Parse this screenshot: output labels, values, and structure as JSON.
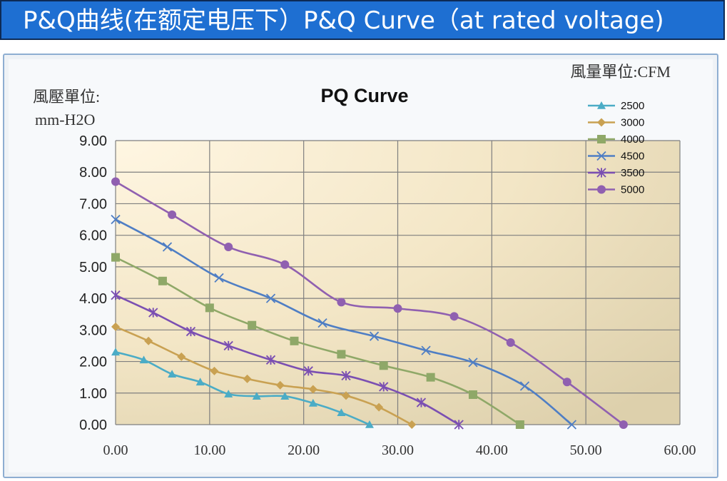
{
  "header": {
    "title": "P&Q曲线(在额定电压下）P&Q Curve（at rated voltage)",
    "bg_color": "#1e6fd2"
  },
  "chart_data": {
    "type": "line",
    "title": "PQ Curve",
    "xunit_label": "風量單位:CFM",
    "yunit_label_line1": "風壓單位:",
    "yunit_label_line2": "mm-H2O",
    "xlim": [
      0,
      60
    ],
    "ylim": [
      0,
      9
    ],
    "x_ticks": [
      "0.00",
      "10.00",
      "20.00",
      "30.00",
      "40.00",
      "50.00",
      "60.00"
    ],
    "y_ticks": [
      "0.00",
      "1.00",
      "2.00",
      "3.00",
      "4.00",
      "5.00",
      "6.00",
      "7.00",
      "8.00",
      "9.00"
    ],
    "grid": true,
    "legend_position": "top-right",
    "series": [
      {
        "name": "2500",
        "color": "#4bacc6",
        "marker": "triangle",
        "points": [
          [
            0,
            2.3
          ],
          [
            3,
            2.05
          ],
          [
            6,
            1.6
          ],
          [
            9,
            1.35
          ],
          [
            12,
            0.97
          ],
          [
            15,
            0.9
          ],
          [
            18,
            0.9
          ],
          [
            21,
            0.68
          ],
          [
            24,
            0.38
          ],
          [
            27,
            0.0
          ]
        ]
      },
      {
        "name": "3000",
        "color": "#c9a152",
        "marker": "diamond",
        "points": [
          [
            0,
            3.1
          ],
          [
            3.5,
            2.65
          ],
          [
            7,
            2.15
          ],
          [
            10.5,
            1.7
          ],
          [
            14,
            1.45
          ],
          [
            17.5,
            1.25
          ],
          [
            21,
            1.12
          ],
          [
            24.5,
            0.92
          ],
          [
            28,
            0.55
          ],
          [
            31.5,
            0.0
          ]
        ]
      },
      {
        "name": "4000",
        "color": "#8fa868",
        "marker": "square",
        "points": [
          [
            0,
            5.3
          ],
          [
            5,
            4.55
          ],
          [
            10,
            3.7
          ],
          [
            14.5,
            3.15
          ],
          [
            19,
            2.65
          ],
          [
            24,
            2.23
          ],
          [
            28.5,
            1.87
          ],
          [
            33.5,
            1.5
          ],
          [
            38,
            0.95
          ],
          [
            43,
            0.0
          ]
        ]
      },
      {
        "name": "4500",
        "color": "#4f7ec4",
        "marker": "x",
        "points": [
          [
            0,
            6.5
          ],
          [
            5.5,
            5.63
          ],
          [
            11,
            4.65
          ],
          [
            16.5,
            4.0
          ],
          [
            22,
            3.22
          ],
          [
            27.5,
            2.8
          ],
          [
            33,
            2.35
          ],
          [
            38,
            1.97
          ],
          [
            43.5,
            1.22
          ],
          [
            48.5,
            0.0
          ]
        ]
      },
      {
        "name": "3500",
        "color": "#7b4fb2",
        "marker": "star",
        "points": [
          [
            0,
            4.1
          ],
          [
            4,
            3.55
          ],
          [
            8,
            2.95
          ],
          [
            12,
            2.5
          ],
          [
            16.5,
            2.05
          ],
          [
            20.5,
            1.7
          ],
          [
            24.5,
            1.55
          ],
          [
            28.5,
            1.2
          ],
          [
            32.5,
            0.7
          ],
          [
            36.5,
            0.0
          ]
        ]
      },
      {
        "name": "5000",
        "color": "#9060b0",
        "marker": "circle",
        "points": [
          [
            0,
            7.7
          ],
          [
            6,
            6.65
          ],
          [
            12,
            5.63
          ],
          [
            18,
            5.07
          ],
          [
            24,
            3.88
          ],
          [
            30,
            3.68
          ],
          [
            36,
            3.43
          ],
          [
            42,
            2.6
          ],
          [
            48,
            1.35
          ],
          [
            54,
            0.0
          ]
        ]
      }
    ]
  }
}
